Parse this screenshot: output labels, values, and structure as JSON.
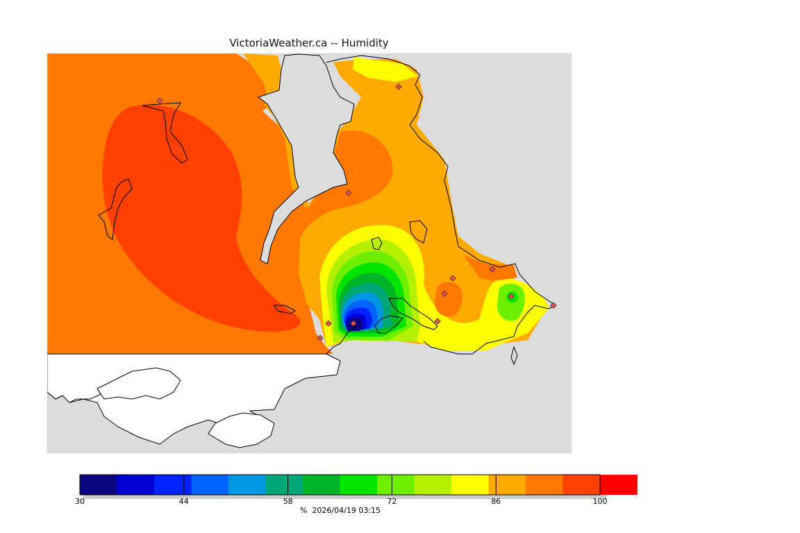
{
  "title": "VictoriaWeather.ca -- Humidity",
  "legend": {
    "unit": "%",
    "timestamp": "2026/04/19 03:15",
    "min": 30,
    "max": 100,
    "step": 5,
    "tick_labels": [
      "30",
      "44",
      "58",
      "72",
      "86",
      "100"
    ],
    "colors": [
      "#0b0582",
      "#0000d0",
      "#0022ff",
      "#0064ff",
      "#0098e0",
      "#00a878",
      "#00b428",
      "#00e400",
      "#6cf000",
      "#b4f000",
      "#ffff00",
      "#ffaa00",
      "#ff7800",
      "#ff4000",
      "#ff0000"
    ]
  },
  "map": {
    "water_color": "#dcdcdc",
    "land_nodata_color": "#ffffff",
    "coastline_color": "#000000",
    "station_marker_color": "#e05050"
  }
}
